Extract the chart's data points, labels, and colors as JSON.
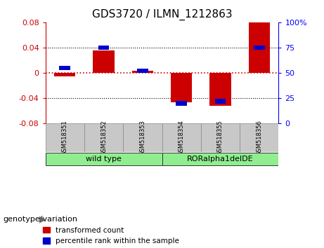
{
  "title": "GDS3720 / ILMN_1212863",
  "samples": [
    "GSM518351",
    "GSM518352",
    "GSM518353",
    "GSM518354",
    "GSM518355",
    "GSM518356"
  ],
  "red_values": [
    -0.005,
    0.036,
    0.003,
    -0.046,
    -0.052,
    0.08
  ],
  "blue_values_pct": [
    55,
    75,
    52,
    20,
    22,
    75
  ],
  "ylim_left": [
    -0.08,
    0.08
  ],
  "ylim_right": [
    0,
    100
  ],
  "yticks_left": [
    -0.08,
    -0.04,
    0.0,
    0.04,
    0.08
  ],
  "yticks_right": [
    0,
    25,
    50,
    75,
    100
  ],
  "red_color": "#CC0000",
  "blue_color": "#0000CC",
  "bg_color": "white",
  "label_red": "transformed count",
  "label_blue": "percentile rank within the sample",
  "tick_bg": "#C8C8C8",
  "wt_color": "#90EE90",
  "ror_color": "#90EE90",
  "group_label": "genotype/variation",
  "wt_label": "wild type",
  "ror_label": "RORalpha1delDE"
}
